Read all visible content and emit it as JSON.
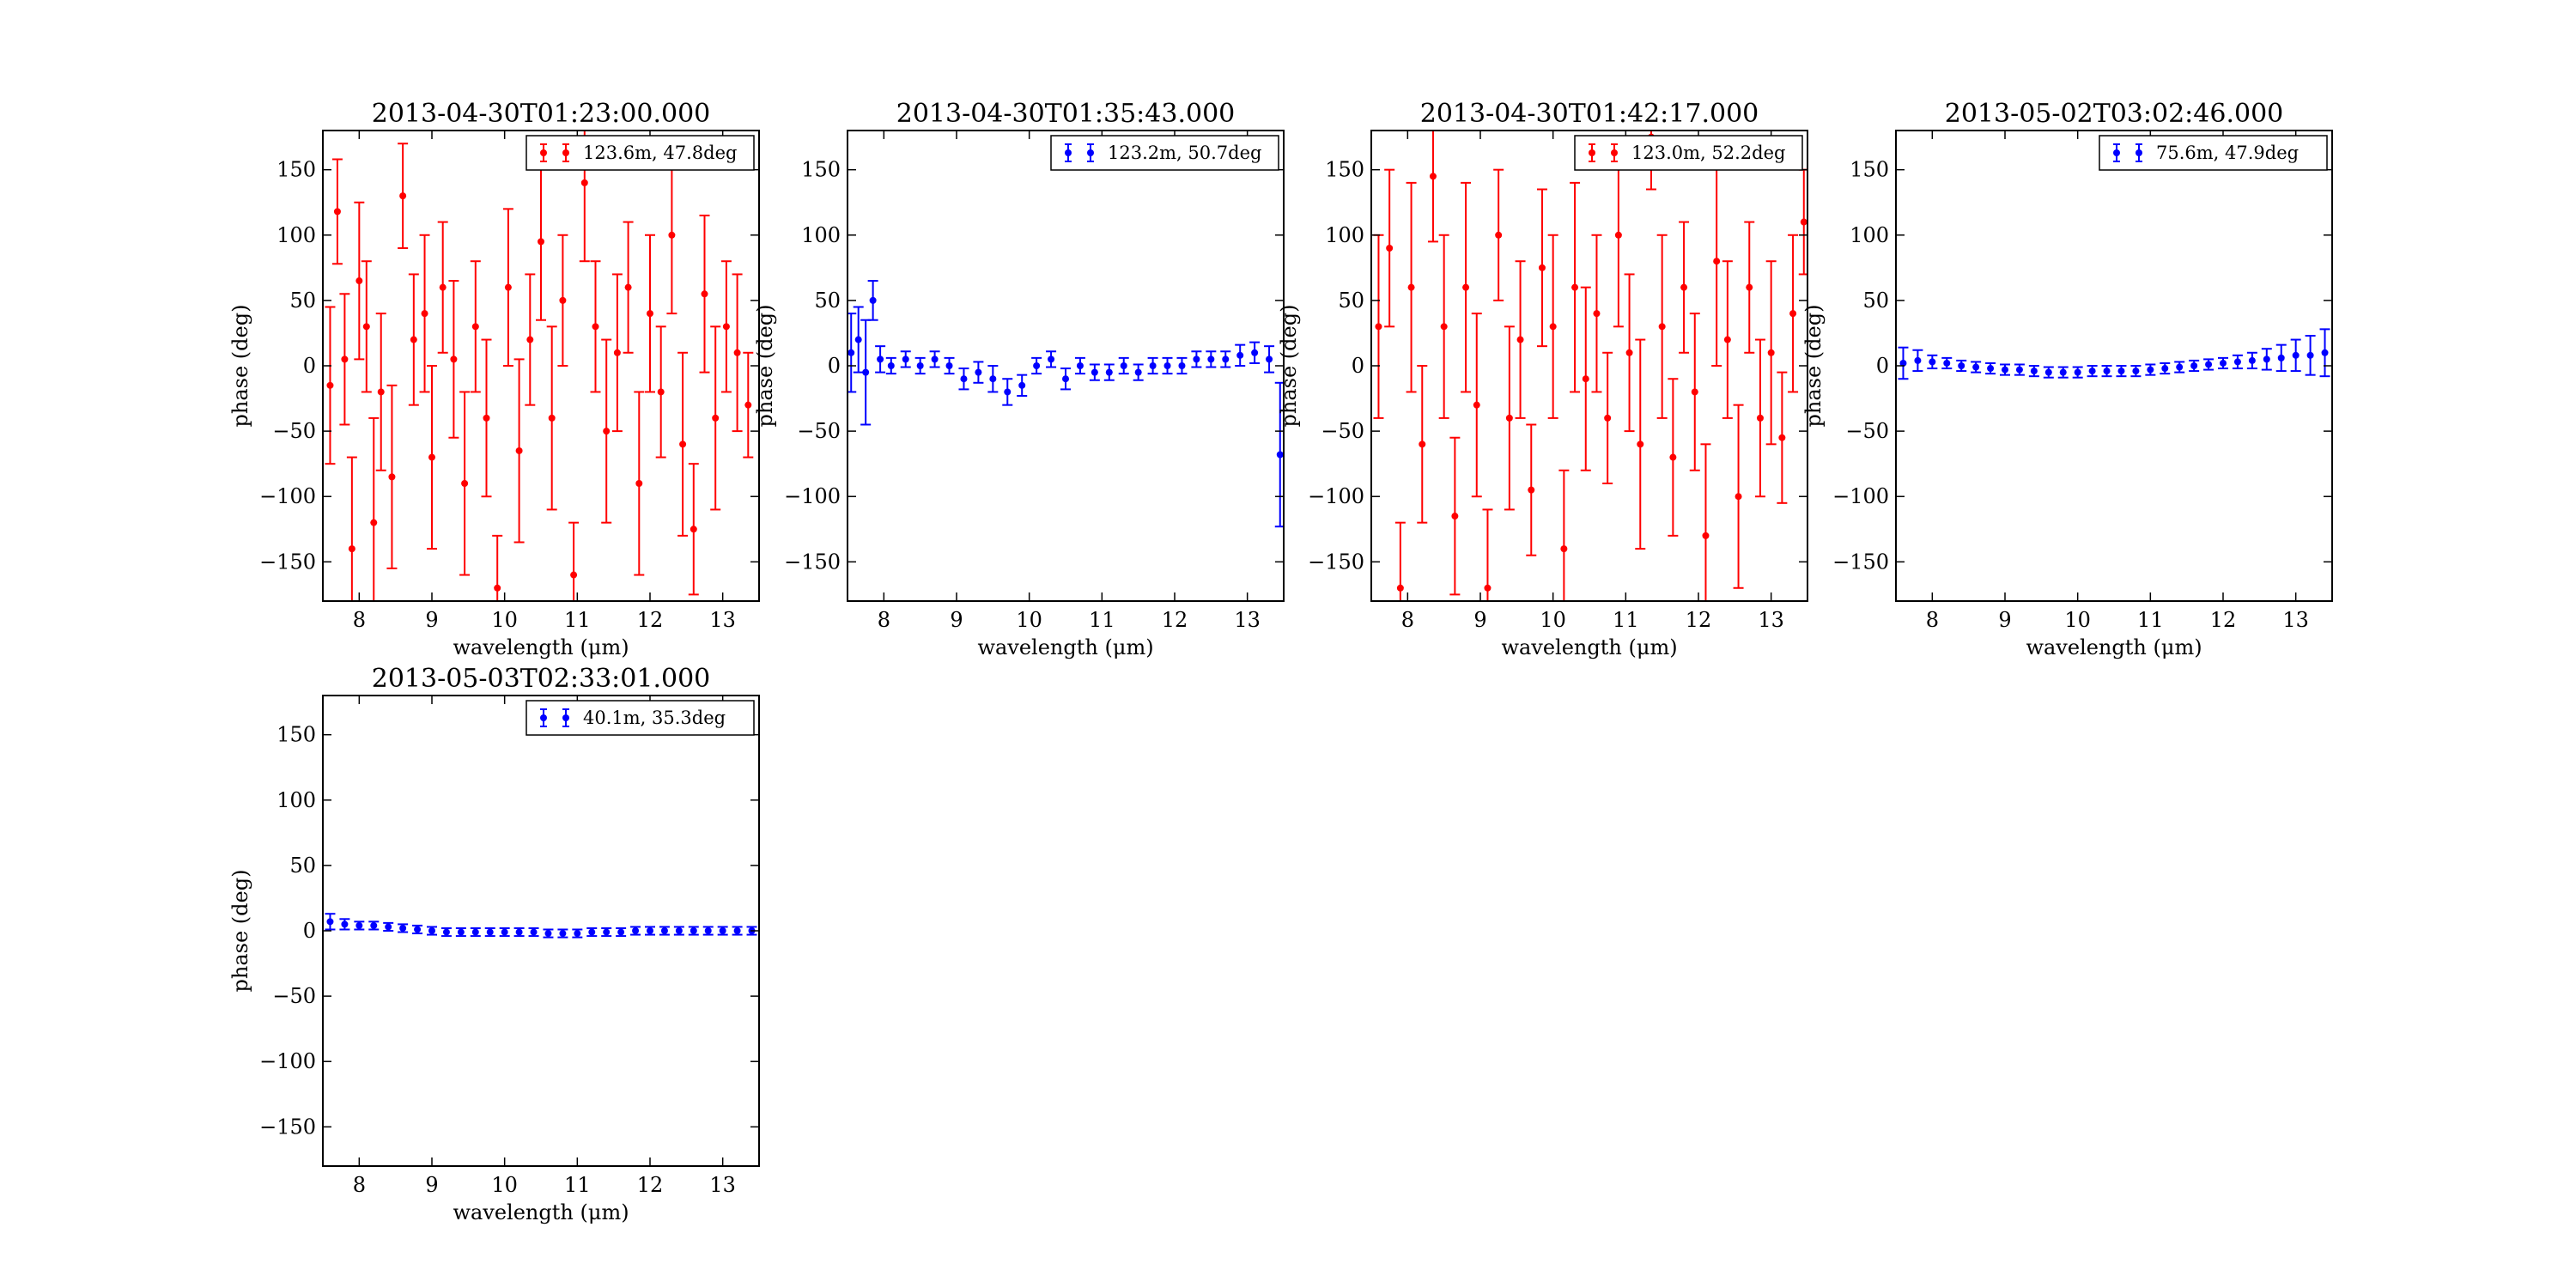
{
  "chart_data": [
    {
      "type": "scatter",
      "title": "2013-04-30T01:23:00.000",
      "xlabel": "wavelength (μm)",
      "ylabel": "phase (deg)",
      "xlim": [
        7.5,
        13.5
      ],
      "ylim": [
        -180,
        180
      ],
      "xticks": [
        8,
        9,
        10,
        11,
        12,
        13
      ],
      "yticks": [
        -150,
        -100,
        -50,
        0,
        50,
        100,
        150
      ],
      "legend_position": "upper-right",
      "series": [
        {
          "name": "123.6m, 47.8deg",
          "color": "#ff0000",
          "x": [
            7.6,
            7.7,
            7.8,
            7.9,
            8.0,
            8.1,
            8.2,
            8.3,
            8.45,
            8.6,
            8.75,
            8.9,
            9.0,
            9.15,
            9.3,
            9.45,
            9.6,
            9.75,
            9.9,
            10.05,
            10.2,
            10.35,
            10.5,
            10.65,
            10.8,
            10.95,
            11.1,
            11.25,
            11.4,
            11.55,
            11.7,
            11.85,
            12.0,
            12.15,
            12.3,
            12.45,
            12.6,
            12.75,
            12.9,
            13.05,
            13.2,
            13.35
          ],
          "y": [
            -15,
            118,
            5,
            -140,
            65,
            30,
            -120,
            -20,
            -85,
            130,
            20,
            40,
            -70,
            60,
            5,
            -90,
            30,
            -40,
            -170,
            60,
            -65,
            20,
            95,
            -40,
            50,
            -160,
            140,
            30,
            -50,
            10,
            60,
            -90,
            40,
            -20,
            100,
            -60,
            -125,
            55,
            -40,
            30,
            10,
            -30
          ],
          "err": [
            60,
            40,
            50,
            70,
            60,
            50,
            80,
            60,
            70,
            40,
            50,
            60,
            70,
            50,
            60,
            70,
            50,
            60,
            40,
            60,
            70,
            50,
            60,
            70,
            50,
            40,
            60,
            50,
            70,
            60,
            50,
            70,
            60,
            50,
            60,
            70,
            50,
            60,
            70,
            50,
            60,
            40
          ]
        }
      ]
    },
    {
      "type": "scatter",
      "title": "2013-04-30T01:35:43.000",
      "xlabel": "wavelength (μm)",
      "ylabel": "phase (deg)",
      "xlim": [
        7.5,
        13.5
      ],
      "ylim": [
        -180,
        180
      ],
      "xticks": [
        8,
        9,
        10,
        11,
        12,
        13
      ],
      "yticks": [
        -150,
        -100,
        -50,
        0,
        50,
        100,
        150
      ],
      "legend_position": "upper-right",
      "series": [
        {
          "name": "123.2m, 50.7deg",
          "color": "#0000ff",
          "x": [
            7.55,
            7.65,
            7.75,
            7.85,
            7.95,
            8.1,
            8.3,
            8.5,
            8.7,
            8.9,
            9.1,
            9.3,
            9.5,
            9.7,
            9.9,
            10.1,
            10.3,
            10.5,
            10.7,
            10.9,
            11.1,
            11.3,
            11.5,
            11.7,
            11.9,
            12.1,
            12.3,
            12.5,
            12.7,
            12.9,
            13.1,
            13.3,
            13.45
          ],
          "y": [
            10,
            20,
            -5,
            50,
            5,
            0,
            5,
            0,
            5,
            0,
            -10,
            -5,
            -10,
            -20,
            -15,
            0,
            5,
            -10,
            0,
            -5,
            -5,
            0,
            -5,
            0,
            0,
            0,
            5,
            5,
            5,
            8,
            10,
            5,
            -68
          ],
          "err": [
            30,
            25,
            40,
            15,
            10,
            6,
            6,
            6,
            6,
            6,
            8,
            8,
            10,
            10,
            8,
            6,
            6,
            8,
            6,
            6,
            6,
            6,
            6,
            6,
            6,
            6,
            6,
            6,
            6,
            8,
            8,
            10,
            55
          ]
        }
      ]
    },
    {
      "type": "scatter",
      "title": "2013-04-30T01:42:17.000",
      "xlabel": "wavelength (μm)",
      "ylabel": "phase (deg)",
      "xlim": [
        7.5,
        13.5
      ],
      "ylim": [
        -180,
        180
      ],
      "xticks": [
        8,
        9,
        10,
        11,
        12,
        13
      ],
      "yticks": [
        -150,
        -100,
        -50,
        0,
        50,
        100,
        150
      ],
      "legend_position": "upper-right",
      "series": [
        {
          "name": "123.0m, 52.2deg",
          "color": "#ff0000",
          "x": [
            7.6,
            7.75,
            7.9,
            8.05,
            8.2,
            8.35,
            8.5,
            8.65,
            8.8,
            8.95,
            9.1,
            9.25,
            9.4,
            9.55,
            9.7,
            9.85,
            10.0,
            10.15,
            10.3,
            10.45,
            10.6,
            10.75,
            10.9,
            11.05,
            11.2,
            11.35,
            11.5,
            11.65,
            11.8,
            11.95,
            12.1,
            12.25,
            12.4,
            12.55,
            12.7,
            12.85,
            13.0,
            13.15,
            13.3,
            13.45
          ],
          "y": [
            30,
            90,
            -170,
            60,
            -60,
            145,
            30,
            -115,
            60,
            -30,
            -170,
            100,
            -40,
            20,
            -95,
            75,
            30,
            -140,
            60,
            -10,
            40,
            -40,
            100,
            10,
            -60,
            175,
            30,
            -70,
            60,
            -20,
            -130,
            80,
            20,
            -100,
            60,
            -40,
            10,
            -55,
            40,
            110
          ],
          "err": [
            70,
            60,
            50,
            80,
            60,
            50,
            70,
            60,
            80,
            70,
            60,
            50,
            70,
            60,
            50,
            60,
            70,
            60,
            80,
            70,
            60,
            50,
            70,
            60,
            80,
            40,
            70,
            60,
            50,
            60,
            70,
            80,
            60,
            70,
            50,
            60,
            70,
            50,
            60,
            40
          ]
        }
      ]
    },
    {
      "type": "scatter",
      "title": "2013-05-02T03:02:46.000",
      "xlabel": "wavelength (μm)",
      "ylabel": "phase (deg)",
      "xlim": [
        7.5,
        13.5
      ],
      "ylim": [
        -180,
        180
      ],
      "xticks": [
        8,
        9,
        10,
        11,
        12,
        13
      ],
      "yticks": [
        -150,
        -100,
        -50,
        0,
        50,
        100,
        150
      ],
      "legend_position": "upper-right",
      "series": [
        {
          "name": "75.6m, 47.9deg",
          "color": "#0000ff",
          "x": [
            7.6,
            7.8,
            8.0,
            8.2,
            8.4,
            8.6,
            8.8,
            9.0,
            9.2,
            9.4,
            9.6,
            9.8,
            10.0,
            10.2,
            10.4,
            10.6,
            10.8,
            11.0,
            11.2,
            11.4,
            11.6,
            11.8,
            12.0,
            12.2,
            12.4,
            12.6,
            12.8,
            13.0,
            13.2,
            13.4
          ],
          "y": [
            2,
            4,
            3,
            2,
            0,
            -1,
            -2,
            -3,
            -3,
            -4,
            -5,
            -5,
            -5,
            -4,
            -4,
            -4,
            -4,
            -3,
            -2,
            -1,
            0,
            1,
            2,
            3,
            4,
            5,
            6,
            8,
            8,
            10
          ],
          "err": [
            12,
            8,
            5,
            4,
            4,
            4,
            4,
            4,
            4,
            4,
            4,
            4,
            4,
            4,
            4,
            4,
            4,
            4,
            4,
            4,
            4,
            4,
            4,
            5,
            6,
            8,
            10,
            12,
            15,
            18
          ]
        }
      ]
    },
    {
      "type": "scatter",
      "title": "2013-05-03T02:33:01.000",
      "xlabel": "wavelength (μm)",
      "ylabel": "phase (deg)",
      "xlim": [
        7.5,
        13.5
      ],
      "ylim": [
        -180,
        180
      ],
      "xticks": [
        8,
        9,
        10,
        11,
        12,
        13
      ],
      "yticks": [
        -150,
        -100,
        -50,
        0,
        50,
        100,
        150
      ],
      "legend_position": "upper-right",
      "series": [
        {
          "name": "40.1m, 35.3deg",
          "color": "#0000ff",
          "x": [
            7.6,
            7.8,
            8.0,
            8.2,
            8.4,
            8.6,
            8.8,
            9.0,
            9.2,
            9.4,
            9.6,
            9.8,
            10.0,
            10.2,
            10.4,
            10.6,
            10.8,
            11.0,
            11.2,
            11.4,
            11.6,
            11.8,
            12.0,
            12.2,
            12.4,
            12.6,
            12.8,
            13.0,
            13.2,
            13.4
          ],
          "y": [
            7,
            5,
            4,
            4,
            3,
            2,
            1,
            0,
            -1,
            -1,
            -1,
            -1,
            -1,
            -1,
            -1,
            -2,
            -2,
            -2,
            -1,
            -1,
            -1,
            0,
            0,
            0,
            0,
            0,
            0,
            0,
            0,
            0
          ],
          "err": [
            6,
            4,
            3,
            3,
            3,
            3,
            3,
            3,
            3,
            3,
            3,
            3,
            3,
            3,
            3,
            3,
            3,
            3,
            3,
            3,
            3,
            3,
            3,
            3,
            3,
            3,
            3,
            3,
            3,
            3
          ]
        }
      ]
    }
  ]
}
